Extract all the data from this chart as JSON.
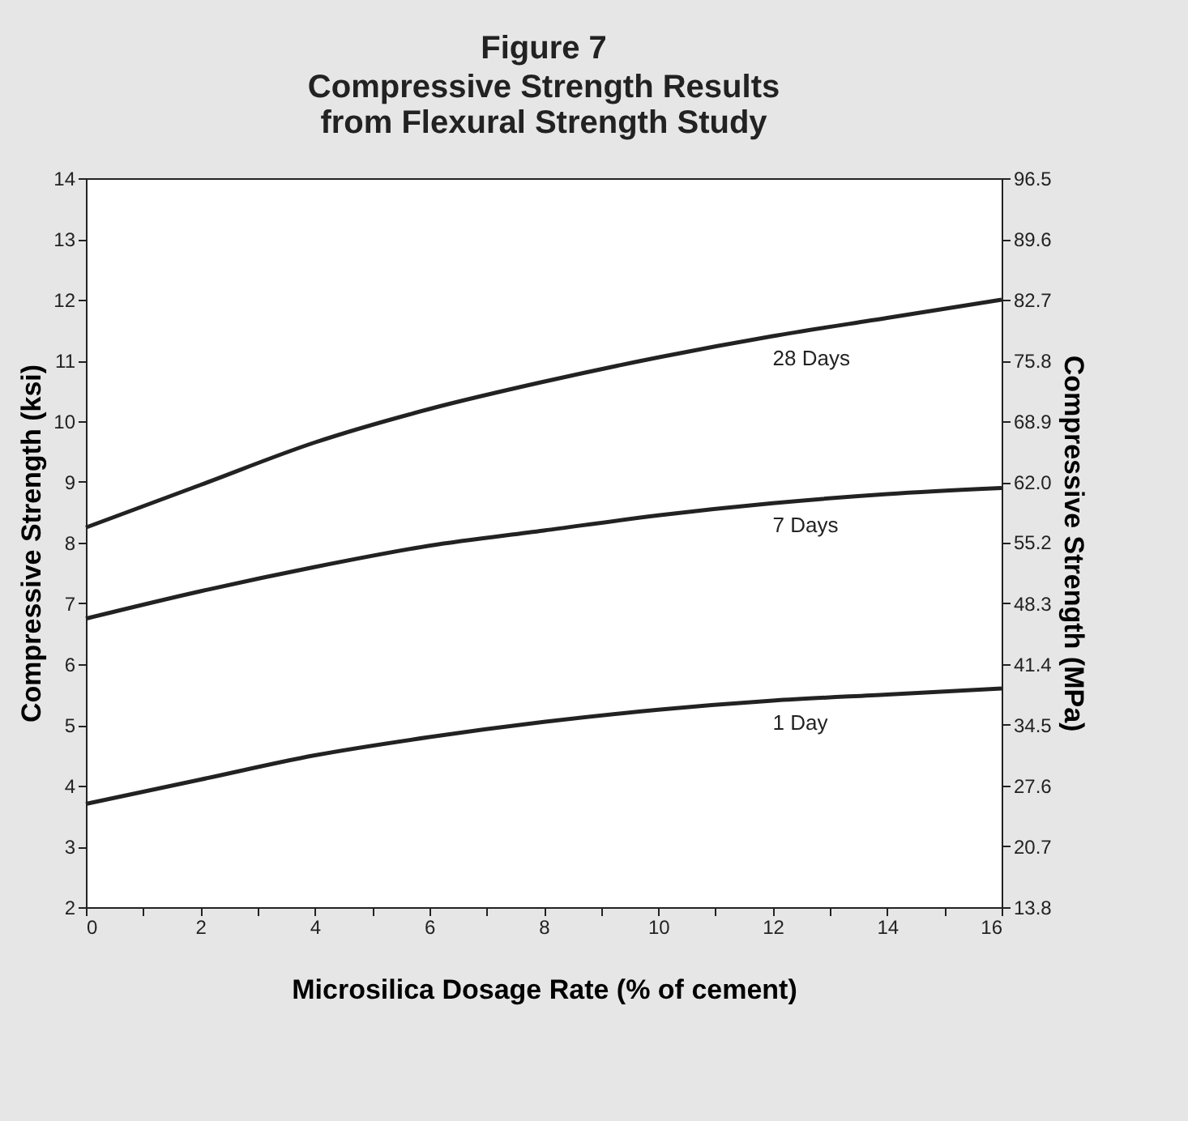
{
  "chart_data": {
    "type": "line",
    "title": "Figure 7",
    "subtitle": "Compressive Strength Results from Flexural Strength Study",
    "xlabel": "Microsilica Dosage Rate (% of cement)",
    "ylabel": "Compressive Strength (ksi)",
    "y2label": "Compressive Strength (MPa)",
    "x": [
      0,
      2,
      4,
      6,
      8,
      10,
      12,
      14,
      16
    ],
    "series": [
      {
        "name": "28 Days",
        "color": "#222222",
        "values": [
          8.25,
          8.95,
          9.65,
          10.2,
          10.65,
          11.05,
          11.4,
          11.7,
          12.0
        ]
      },
      {
        "name": "7 Days",
        "color": "#222222",
        "values": [
          6.75,
          7.2,
          7.6,
          7.95,
          8.2,
          8.45,
          8.65,
          8.8,
          8.9
        ]
      },
      {
        "name": "1 Day",
        "color": "#222222",
        "values": [
          3.7,
          4.1,
          4.5,
          4.8,
          5.05,
          5.25,
          5.4,
          5.5,
          5.6
        ]
      }
    ],
    "xlim": [
      0,
      16
    ],
    "xticks": [
      0,
      {
        "value": 1,
        "label": null
      },
      2,
      {
        "value": 3,
        "label": null
      },
      4,
      {
        "value": 5,
        "label": null
      },
      6,
      {
        "value": 7,
        "label": null
      },
      8,
      {
        "value": 9,
        "label": null
      },
      10,
      {
        "value": 11,
        "label": null
      },
      12,
      {
        "value": 13,
        "label": null
      },
      14,
      {
        "value": 15,
        "label": null
      },
      16
    ],
    "ylim": [
      2,
      14
    ],
    "yticks": [
      2,
      3,
      4,
      5,
      6,
      7,
      8,
      9,
      10,
      11,
      12,
      13,
      14
    ],
    "y2lim": [
      13.8,
      96.5
    ],
    "y2ticks": [
      13.8,
      20.7,
      27.6,
      34.5,
      41.4,
      48.3,
      55.2,
      {
        "value": 62,
        "label": "62.0"
      },
      68.9,
      75.8,
      82.7,
      89.6,
      96.5
    ],
    "grid": false,
    "legend": false,
    "marker": "none",
    "line_style": "solid"
  }
}
